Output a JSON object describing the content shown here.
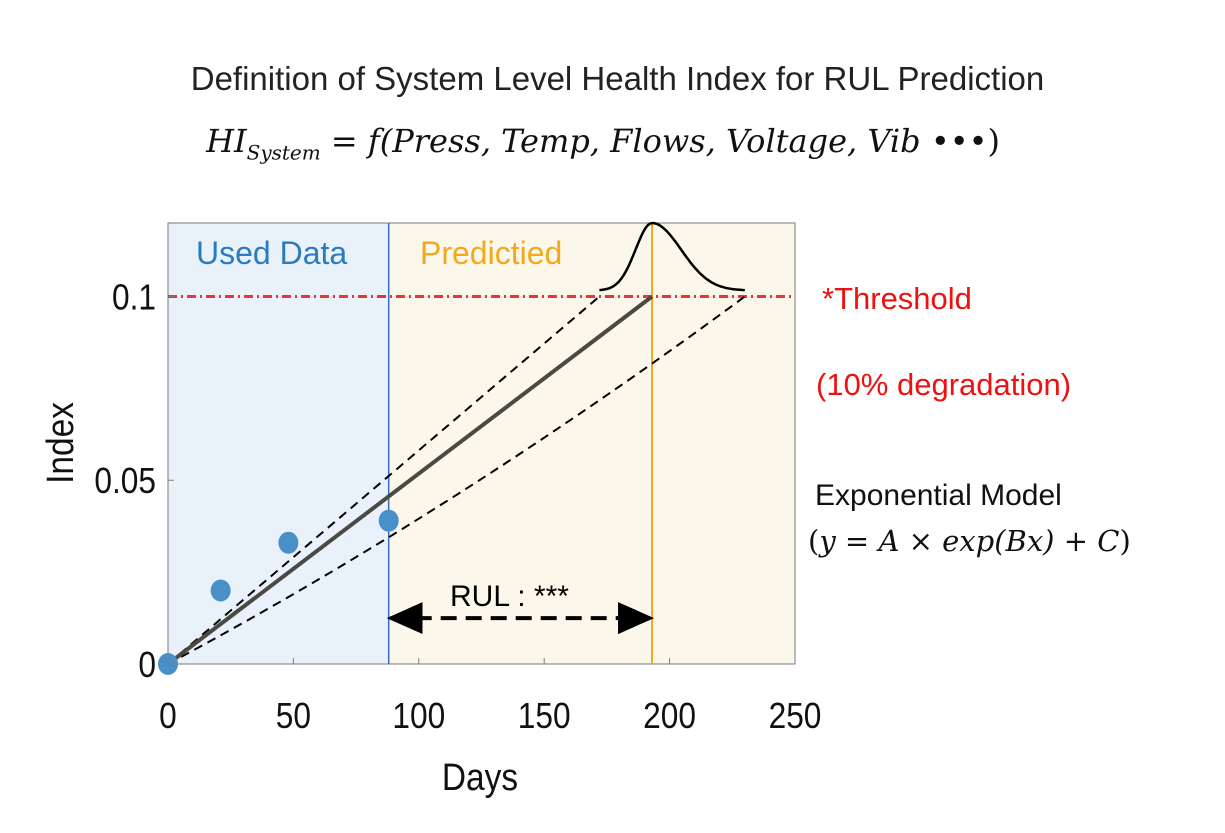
{
  "title": "Definition of System Level Health Index for RUL Prediction",
  "formula": {
    "lhs": "HI",
    "lhs_sub": "System",
    "rhs": " = f(Press, Temp, Flows, Voltage, Vib ",
    "dots": "•••",
    "close": ")"
  },
  "annotations": {
    "threshold": "*Threshold",
    "degradation": "(10% degradation)",
    "model_name": "Exponential Model",
    "model_eq": "y = A × exp(Bx) + C",
    "model_open": "(",
    "model_close": ")"
  },
  "chart_data": {
    "type": "scatter",
    "xlabel": "Days",
    "ylabel": "Index",
    "xlim": [
      0,
      250
    ],
    "ylim": [
      0,
      0.12
    ],
    "x_ticks": [
      "0",
      "50",
      "100",
      "150",
      "200",
      "250"
    ],
    "y_ticks": [
      "0",
      "0.05",
      "0.1"
    ],
    "regions": [
      {
        "label": "Used Data",
        "x_start": 0,
        "x_end": 88,
        "color": "#e9f1fa",
        "text_color": "#2a7bbf"
      },
      {
        "label": "Predictied",
        "x_start": 88,
        "x_end": 250,
        "color": "#fbf7ea",
        "text_color": "#f2a91b"
      }
    ],
    "points": [
      {
        "x": 0,
        "y": 0.0
      },
      {
        "x": 21,
        "y": 0.02
      },
      {
        "x": 48,
        "y": 0.033
      },
      {
        "x": 88,
        "y": 0.039
      }
    ],
    "point_color": "#4a90c8",
    "fit_line": {
      "x": [
        0,
        193
      ],
      "y": [
        0,
        0.1
      ],
      "color": "#4a4a42"
    },
    "bounds": [
      {
        "x": [
          0,
          172
        ],
        "y": [
          0,
          0.1
        ]
      },
      {
        "x": [
          0,
          230
        ],
        "y": [
          0,
          0.1
        ]
      }
    ],
    "threshold": {
      "y": 0.1,
      "color": "#ee3333"
    },
    "data_cutoff_x": 88,
    "eol_x": 193,
    "eol_color": "#f2a91b",
    "cutoff_color": "#3a6bbf",
    "distribution": {
      "x_start": 172,
      "x_peak": 193,
      "x_end": 230
    },
    "rul_label": "RUL : ***",
    "rul_arrow": {
      "x_start": 88,
      "x_end": 193,
      "y": 0.0125
    }
  }
}
